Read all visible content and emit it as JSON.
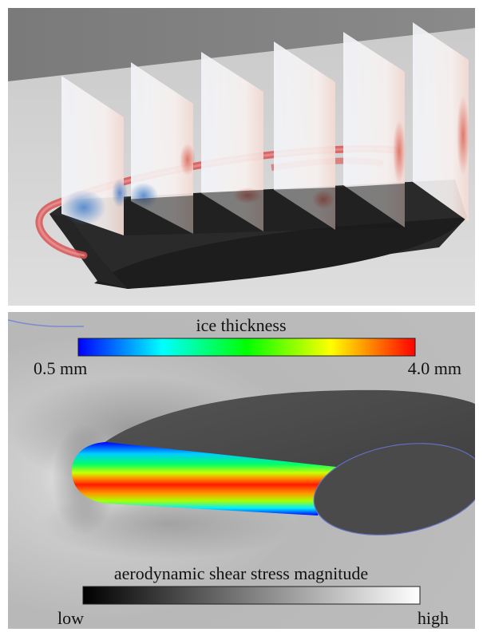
{
  "top_panel": {},
  "bottom_panel": {
    "ice_colorbar": {
      "title": "ice thickness",
      "min_label": "0.5 mm",
      "max_label": "4.0 mm",
      "colors": [
        "#0000ff",
        "#00ffff",
        "#00ff00",
        "#ffff00",
        "#ff0000"
      ]
    },
    "shear_colorbar": {
      "title": "aerodynamic shear stress magnitude",
      "min_label": "low",
      "max_label": "high",
      "colors": [
        "#000000",
        "#ffffff"
      ]
    }
  }
}
